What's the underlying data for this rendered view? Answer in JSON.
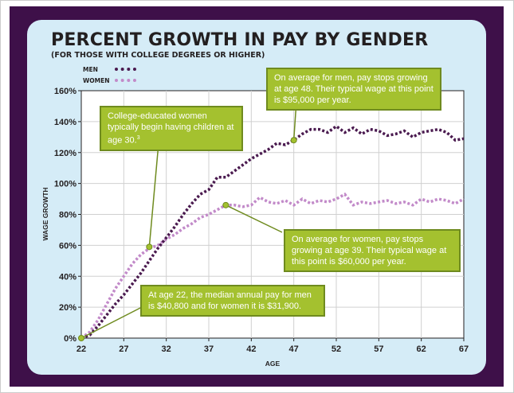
{
  "title": "PERCENT GROWTH IN PAY BY GENDER",
  "subtitle": "(FOR THOSE WITH COLLEGE DEGREES OR HIGHER)",
  "colors": {
    "background_frame": "#3e1049",
    "panel": "#d5ecf7",
    "men_line": "#4a1a4f",
    "women_line": "#c28ac9",
    "callout_fill": "#a4c12f",
    "callout_border": "#6f8b1f"
  },
  "chart_data": {
    "type": "line",
    "title": "PERCENT GROWTH IN PAY BY GENDER",
    "subtitle": "(FOR THOSE WITH COLLEGE DEGREES OR HIGHER)",
    "xlabel": "AGE",
    "ylabel": "WAGE GROWTH",
    "xlim": [
      22,
      67
    ],
    "ylim": [
      0,
      160
    ],
    "x_ticks": [
      22,
      27,
      32,
      37,
      42,
      47,
      52,
      57,
      62,
      67
    ],
    "y_ticks": [
      0,
      20,
      40,
      60,
      80,
      100,
      120,
      140,
      160
    ],
    "y_tick_labels": [
      "0%",
      "20%",
      "40%",
      "60%",
      "80%",
      "100%",
      "120%",
      "140%",
      "160%"
    ],
    "legend": {
      "placement": "top-left"
    },
    "series": [
      {
        "name": "MEN",
        "style": "dotted",
        "x": [
          22,
          23,
          24,
          25,
          26,
          27,
          28,
          29,
          30,
          31,
          32,
          33,
          34,
          35,
          36,
          37,
          38,
          39,
          40,
          41,
          42,
          43,
          44,
          45,
          46,
          47,
          48,
          49,
          50,
          51,
          52,
          53,
          54,
          55,
          56,
          57,
          58,
          59,
          60,
          61,
          62,
          63,
          64,
          65,
          66,
          67
        ],
        "values": [
          0,
          2,
          8,
          15,
          22,
          28,
          35,
          42,
          50,
          58,
          65,
          72,
          80,
          87,
          93,
          96,
          104,
          104,
          108,
          112,
          116,
          119,
          122,
          126,
          125,
          128,
          132,
          135,
          135,
          133,
          137,
          133,
          136,
          132,
          135,
          134,
          131,
          132,
          134,
          130,
          133,
          134,
          135,
          133,
          128,
          129
        ]
      },
      {
        "name": "WOMEN",
        "style": "dotted",
        "x": [
          22,
          23,
          24,
          25,
          26,
          27,
          28,
          29,
          30,
          31,
          32,
          33,
          34,
          35,
          36,
          37,
          38,
          39,
          40,
          41,
          42,
          43,
          44,
          45,
          46,
          47,
          48,
          49,
          50,
          51,
          52,
          53,
          54,
          55,
          56,
          57,
          58,
          59,
          60,
          61,
          62,
          63,
          64,
          65,
          66,
          67
        ],
        "values": [
          0,
          4,
          12,
          22,
          32,
          40,
          48,
          54,
          58,
          60,
          64,
          67,
          71,
          74,
          78,
          80,
          83,
          86,
          86,
          85,
          86,
          91,
          88,
          87,
          89,
          86,
          90,
          87,
          89,
          88,
          90,
          93,
          86,
          88,
          87,
          88,
          89,
          87,
          88,
          86,
          90,
          88,
          90,
          89,
          87,
          90
        ]
      }
    ],
    "annotations": [
      {
        "text": "College-educated women typically begin having children at age 30.",
        "superscript": "3",
        "x": 30,
        "y": 59
      },
      {
        "text": "On average for men, pay stops growing at age 48. Their typical wage at this point is $95,000 per year.",
        "x": 47,
        "y": 128
      },
      {
        "text": "On average for women, pay stops growing at age 39. Their typical wage at this point is $60,000 per year.",
        "x": 39,
        "y": 86
      },
      {
        "text": "At age 22, the median annual pay for men is $40,800 and for women it is $31,900.",
        "x": 22,
        "y": 0
      }
    ]
  }
}
